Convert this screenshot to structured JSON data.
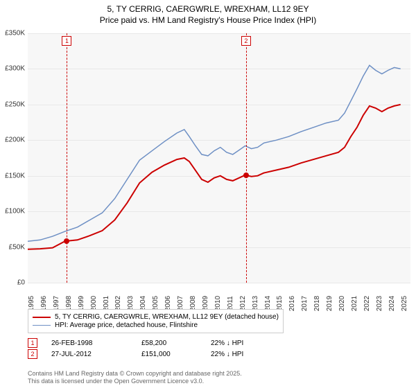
{
  "title_line1": "5, TY CERRIG, CAERGWRLE, WREXHAM, LL12 9EY",
  "title_line2": "Price paid vs. HM Land Registry's House Price Index (HPI)",
  "chart": {
    "type": "line",
    "background_color": "#f7f7f7",
    "band_color": "#eef3f8",
    "grid_color": "#e8e8e8",
    "ylim": [
      0,
      350000
    ],
    "ytick_step": 50000,
    "yformat_prefix": "£",
    "yformat_suffix": "K",
    "x_years": [
      1995,
      1996,
      1997,
      1998,
      1999,
      2000,
      2001,
      2002,
      2003,
      2004,
      2005,
      2006,
      2007,
      2008,
      2009,
      2010,
      2011,
      2012,
      2013,
      2014,
      2015,
      2016,
      2017,
      2018,
      2019,
      2020,
      2021,
      2022,
      2023,
      2024,
      2025
    ],
    "xlim": [
      1995,
      2025.8
    ],
    "series": [
      {
        "name": "property",
        "label": "5, TY CERRIG, CAERGWRLE, WREXHAM, LL12 9EY (detached house)",
        "color": "#cc0000",
        "width": 2,
        "data": [
          [
            1995,
            47000
          ],
          [
            1996,
            47500
          ],
          [
            1997,
            49000
          ],
          [
            1998,
            58200
          ],
          [
            1999,
            60000
          ],
          [
            2000,
            66000
          ],
          [
            2001,
            73000
          ],
          [
            2002,
            88000
          ],
          [
            2003,
            112000
          ],
          [
            2004,
            140000
          ],
          [
            2005,
            155000
          ],
          [
            2006,
            165000
          ],
          [
            2007,
            173000
          ],
          [
            2007.6,
            175000
          ],
          [
            2008,
            170000
          ],
          [
            2008.4,
            160000
          ],
          [
            2009,
            145000
          ],
          [
            2009.5,
            141000
          ],
          [
            2010,
            147000
          ],
          [
            2010.5,
            150000
          ],
          [
            2011,
            145000
          ],
          [
            2011.5,
            143000
          ],
          [
            2012,
            147000
          ],
          [
            2012.5,
            151000
          ],
          [
            2013,
            149000
          ],
          [
            2013.5,
            150000
          ],
          [
            2014,
            154000
          ],
          [
            2015,
            158000
          ],
          [
            2016,
            162000
          ],
          [
            2017,
            168000
          ],
          [
            2018,
            173000
          ],
          [
            2019,
            178000
          ],
          [
            2020,
            183000
          ],
          [
            2020.5,
            190000
          ],
          [
            2021,
            205000
          ],
          [
            2021.5,
            218000
          ],
          [
            2022,
            235000
          ],
          [
            2022.5,
            248000
          ],
          [
            2023,
            245000
          ],
          [
            2023.5,
            240000
          ],
          [
            2024,
            245000
          ],
          [
            2024.5,
            248000
          ],
          [
            2025,
            250000
          ]
        ]
      },
      {
        "name": "hpi",
        "label": "HPI: Average price, detached house, Flintshire",
        "color": "#6d8fc4",
        "width": 1.5,
        "data": [
          [
            1995,
            58000
          ],
          [
            1996,
            60000
          ],
          [
            1997,
            65000
          ],
          [
            1998,
            72000
          ],
          [
            1999,
            78000
          ],
          [
            2000,
            88000
          ],
          [
            2001,
            98000
          ],
          [
            2002,
            118000
          ],
          [
            2003,
            145000
          ],
          [
            2004,
            172000
          ],
          [
            2005,
            185000
          ],
          [
            2006,
            198000
          ],
          [
            2007,
            210000
          ],
          [
            2007.6,
            215000
          ],
          [
            2008,
            205000
          ],
          [
            2008.5,
            192000
          ],
          [
            2009,
            180000
          ],
          [
            2009.5,
            178000
          ],
          [
            2010,
            185000
          ],
          [
            2010.5,
            190000
          ],
          [
            2011,
            183000
          ],
          [
            2011.5,
            180000
          ],
          [
            2012,
            186000
          ],
          [
            2012.5,
            192000
          ],
          [
            2013,
            188000
          ],
          [
            2013.5,
            190000
          ],
          [
            2014,
            196000
          ],
          [
            2015,
            200000
          ],
          [
            2016,
            205000
          ],
          [
            2017,
            212000
          ],
          [
            2018,
            218000
          ],
          [
            2019,
            224000
          ],
          [
            2020,
            228000
          ],
          [
            2020.5,
            238000
          ],
          [
            2021,
            255000
          ],
          [
            2021.5,
            272000
          ],
          [
            2022,
            290000
          ],
          [
            2022.5,
            305000
          ],
          [
            2023,
            298000
          ],
          [
            2023.5,
            293000
          ],
          [
            2024,
            298000
          ],
          [
            2024.5,
            302000
          ],
          [
            2025,
            300000
          ]
        ]
      }
    ],
    "markers": [
      {
        "n": "1",
        "date": "26-FEB-1998",
        "price": "£58,200",
        "diff": "22% ↓ HPI",
        "x": 1998.15,
        "y": 58200,
        "color": "#cc0000"
      },
      {
        "n": "2",
        "date": "27-JUL-2012",
        "price": "£151,000",
        "diff": "22% ↓ HPI",
        "x": 2012.57,
        "y": 151000,
        "color": "#cc0000"
      }
    ]
  },
  "legend_label": "Legend",
  "attribution_line1": "Contains HM Land Registry data © Crown copyright and database right 2025.",
  "attribution_line2": "This data is licensed under the Open Government Licence v3.0."
}
